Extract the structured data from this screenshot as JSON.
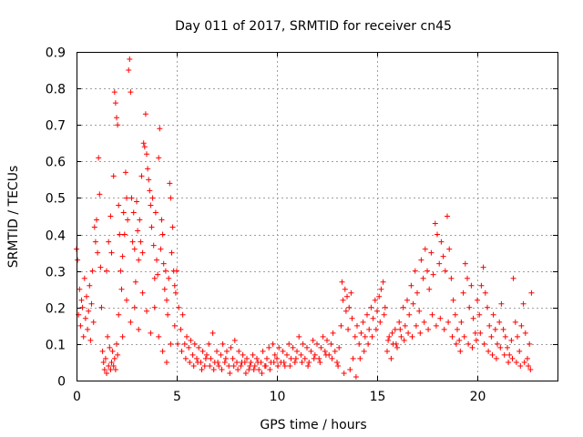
{
  "chart_data": {
    "type": "scatter",
    "title": "Day 011 of 2017, SRMTID for receiver cn45",
    "xlabel": "GPS time / hours",
    "ylabel": "SRMTID / TECUs",
    "xlim": [
      0,
      24
    ],
    "ylim": [
      0,
      0.9
    ],
    "grid": true,
    "marker": "+",
    "series_color": "#ff0000",
    "x_ticks": [
      {
        "value": 0,
        "label": "0"
      },
      {
        "value": 5,
        "label": "5"
      },
      {
        "value": 10,
        "label": "10"
      },
      {
        "value": 15,
        "label": "15"
      },
      {
        "value": 20,
        "label": "20"
      }
    ],
    "y_ticks": [
      {
        "value": 0,
        "label": "0"
      },
      {
        "value": 0.1,
        "label": "0.1"
      },
      {
        "value": 0.2,
        "label": "0.2"
      },
      {
        "value": 0.3,
        "label": "0.3"
      },
      {
        "value": 0.4,
        "label": "0.4"
      },
      {
        "value": 0.5,
        "label": "0.5"
      },
      {
        "value": 0.6,
        "label": "0.6"
      },
      {
        "value": 0.7,
        "label": "0.7"
      },
      {
        "value": 0.8,
        "label": "0.8"
      },
      {
        "value": 0.9,
        "label": "0.9"
      }
    ],
    "points": [
      [
        0.0,
        0.36
      ],
      [
        0.05,
        0.33
      ],
      [
        0.1,
        0.18
      ],
      [
        0.15,
        0.25
      ],
      [
        0.2,
        0.15
      ],
      [
        0.25,
        0.22
      ],
      [
        0.3,
        0.2
      ],
      [
        0.35,
        0.12
      ],
      [
        0.4,
        0.28
      ],
      [
        0.45,
        0.17
      ],
      [
        0.5,
        0.23
      ],
      [
        0.55,
        0.14
      ],
      [
        0.6,
        0.19
      ],
      [
        0.65,
        0.26
      ],
      [
        0.7,
        0.11
      ],
      [
        0.75,
        0.21
      ],
      [
        0.8,
        0.3
      ],
      [
        0.85,
        0.16
      ],
      [
        0.9,
        0.42
      ],
      [
        0.95,
        0.38
      ],
      [
        1.0,
        0.44
      ],
      [
        1.05,
        0.35
      ],
      [
        1.1,
        0.61
      ],
      [
        1.15,
        0.51
      ],
      [
        1.2,
        0.31
      ],
      [
        1.25,
        0.2
      ],
      [
        1.3,
        0.08
      ],
      [
        1.35,
        0.05
      ],
      [
        1.4,
        0.03
      ],
      [
        1.45,
        0.06
      ],
      [
        1.5,
        0.02
      ],
      [
        1.55,
        0.12
      ],
      [
        1.6,
        0.04
      ],
      [
        1.65,
        0.09
      ],
      [
        1.7,
        0.03
      ],
      [
        1.75,
        0.05
      ],
      [
        1.8,
        0.08
      ],
      [
        1.85,
        0.04
      ],
      [
        1.9,
        0.06
      ],
      [
        1.95,
        0.03
      ],
      [
        2.0,
        0.1
      ],
      [
        2.05,
        0.07
      ],
      [
        1.5,
        0.3
      ],
      [
        1.6,
        0.38
      ],
      [
        1.7,
        0.45
      ],
      [
        1.75,
        0.35
      ],
      [
        1.85,
        0.56
      ],
      [
        1.9,
        0.79
      ],
      [
        1.95,
        0.76
      ],
      [
        2.0,
        0.72
      ],
      [
        2.05,
        0.7
      ],
      [
        2.1,
        0.48
      ],
      [
        2.15,
        0.4
      ],
      [
        2.2,
        0.3
      ],
      [
        2.25,
        0.25
      ],
      [
        2.3,
        0.34
      ],
      [
        2.35,
        0.46
      ],
      [
        2.4,
        0.4
      ],
      [
        2.45,
        0.57
      ],
      [
        2.5,
        0.5
      ],
      [
        2.55,
        0.44
      ],
      [
        2.6,
        0.85
      ],
      [
        2.65,
        0.88
      ],
      [
        2.7,
        0.79
      ],
      [
        2.75,
        0.5
      ],
      [
        2.8,
        0.38
      ],
      [
        2.85,
        0.46
      ],
      [
        2.9,
        0.36
      ],
      [
        2.95,
        0.27
      ],
      [
        3.0,
        0.49
      ],
      [
        3.05,
        0.41
      ],
      [
        3.1,
        0.33
      ],
      [
        3.15,
        0.44
      ],
      [
        3.2,
        0.38
      ],
      [
        3.25,
        0.56
      ],
      [
        3.3,
        0.35
      ],
      [
        3.35,
        0.65
      ],
      [
        3.4,
        0.64
      ],
      [
        3.45,
        0.73
      ],
      [
        3.5,
        0.62
      ],
      [
        3.55,
        0.58
      ],
      [
        3.6,
        0.55
      ],
      [
        3.65,
        0.52
      ],
      [
        3.7,
        0.48
      ],
      [
        3.75,
        0.42
      ],
      [
        3.8,
        0.5
      ],
      [
        3.85,
        0.37
      ],
      [
        3.9,
        0.28
      ],
      [
        3.95,
        0.46
      ],
      [
        4.0,
        0.33
      ],
      [
        4.05,
        0.29
      ],
      [
        4.1,
        0.61
      ],
      [
        4.15,
        0.69
      ],
      [
        4.2,
        0.36
      ],
      [
        4.25,
        0.44
      ],
      [
        4.3,
        0.4
      ],
      [
        4.35,
        0.32
      ],
      [
        4.4,
        0.25
      ],
      [
        4.45,
        0.3
      ],
      [
        4.5,
        0.22
      ],
      [
        4.55,
        0.18
      ],
      [
        4.6,
        0.28
      ],
      [
        4.65,
        0.54
      ],
      [
        4.7,
        0.5
      ],
      [
        4.75,
        0.35
      ],
      [
        4.8,
        0.42
      ],
      [
        4.85,
        0.3
      ],
      [
        4.9,
        0.26
      ],
      [
        4.95,
        0.24
      ],
      [
        2.1,
        0.18
      ],
      [
        2.3,
        0.12
      ],
      [
        2.5,
        0.22
      ],
      [
        2.7,
        0.16
      ],
      [
        2.9,
        0.2
      ],
      [
        3.1,
        0.14
      ],
      [
        3.3,
        0.24
      ],
      [
        3.5,
        0.19
      ],
      [
        3.7,
        0.13
      ],
      [
        3.9,
        0.2
      ],
      [
        4.1,
        0.12
      ],
      [
        4.3,
        0.08
      ],
      [
        4.5,
        0.05
      ],
      [
        4.7,
        0.1
      ],
      [
        4.9,
        0.15
      ],
      [
        5.0,
        0.3
      ],
      [
        5.1,
        0.2
      ],
      [
        5.2,
        0.14
      ],
      [
        5.3,
        0.18
      ],
      [
        5.4,
        0.1
      ],
      [
        5.5,
        0.12
      ],
      [
        5.6,
        0.09
      ],
      [
        5.7,
        0.11
      ],
      [
        5.8,
        0.07
      ],
      [
        5.9,
        0.1
      ],
      [
        6.0,
        0.06
      ],
      [
        6.1,
        0.09
      ],
      [
        6.2,
        0.05
      ],
      [
        6.3,
        0.08
      ],
      [
        6.4,
        0.04
      ],
      [
        6.5,
        0.07
      ],
      [
        6.6,
        0.1
      ],
      [
        6.7,
        0.06
      ],
      [
        6.8,
        0.13
      ],
      [
        6.9,
        0.05
      ],
      [
        7.0,
        0.08
      ],
      [
        7.1,
        0.04
      ],
      [
        7.2,
        0.07
      ],
      [
        7.3,
        0.1
      ],
      [
        7.4,
        0.05
      ],
      [
        7.5,
        0.08
      ],
      [
        7.6,
        0.04
      ],
      [
        7.7,
        0.09
      ],
      [
        7.8,
        0.06
      ],
      [
        7.9,
        0.11
      ],
      [
        8.0,
        0.05
      ],
      [
        8.1,
        0.08
      ],
      [
        8.2,
        0.04
      ],
      [
        8.3,
        0.07
      ],
      [
        8.4,
        0.05
      ],
      [
        8.5,
        0.06
      ],
      [
        8.6,
        0.03
      ],
      [
        8.7,
        0.05
      ],
      [
        8.8,
        0.07
      ],
      [
        8.9,
        0.04
      ],
      [
        9.0,
        0.06
      ],
      [
        9.1,
        0.03
      ],
      [
        9.2,
        0.05
      ],
      [
        9.3,
        0.08
      ],
      [
        9.4,
        0.04
      ],
      [
        9.5,
        0.06
      ],
      [
        9.6,
        0.09
      ],
      [
        9.7,
        0.05
      ],
      [
        9.8,
        0.1
      ],
      [
        9.9,
        0.07
      ],
      [
        5.05,
        0.1
      ],
      [
        5.25,
        0.08
      ],
      [
        5.45,
        0.06
      ],
      [
        5.65,
        0.05
      ],
      [
        5.85,
        0.04
      ],
      [
        6.05,
        0.05
      ],
      [
        6.25,
        0.03
      ],
      [
        6.45,
        0.06
      ],
      [
        6.65,
        0.04
      ],
      [
        6.85,
        0.03
      ],
      [
        7.05,
        0.05
      ],
      [
        7.25,
        0.03
      ],
      [
        7.45,
        0.06
      ],
      [
        7.65,
        0.02
      ],
      [
        7.85,
        0.04
      ],
      [
        8.05,
        0.03
      ],
      [
        8.25,
        0.05
      ],
      [
        8.45,
        0.02
      ],
      [
        8.65,
        0.04
      ],
      [
        8.85,
        0.03
      ],
      [
        9.05,
        0.05
      ],
      [
        9.25,
        0.02
      ],
      [
        9.45,
        0.04
      ],
      [
        9.65,
        0.03
      ],
      [
        9.85,
        0.05
      ],
      [
        10.0,
        0.06
      ],
      [
        10.1,
        0.09
      ],
      [
        10.2,
        0.05
      ],
      [
        10.3,
        0.08
      ],
      [
        10.4,
        0.04
      ],
      [
        10.5,
        0.07
      ],
      [
        10.6,
        0.1
      ],
      [
        10.7,
        0.06
      ],
      [
        10.8,
        0.09
      ],
      [
        10.9,
        0.05
      ],
      [
        11.0,
        0.08
      ],
      [
        11.1,
        0.12
      ],
      [
        11.2,
        0.07
      ],
      [
        11.3,
        0.1
      ],
      [
        11.4,
        0.06
      ],
      [
        11.5,
        0.09
      ],
      [
        11.6,
        0.05
      ],
      [
        11.7,
        0.08
      ],
      [
        11.8,
        0.11
      ],
      [
        11.9,
        0.07
      ],
      [
        12.0,
        0.1
      ],
      [
        12.1,
        0.06
      ],
      [
        12.2,
        0.09
      ],
      [
        12.3,
        0.12
      ],
      [
        12.4,
        0.08
      ],
      [
        12.5,
        0.11
      ],
      [
        12.6,
        0.07
      ],
      [
        12.7,
        0.1
      ],
      [
        12.8,
        0.13
      ],
      [
        12.9,
        0.08
      ],
      [
        13.0,
        0.05
      ],
      [
        13.1,
        0.09
      ],
      [
        13.2,
        0.15
      ],
      [
        13.3,
        0.22
      ],
      [
        13.4,
        0.25
      ],
      [
        13.5,
        0.23
      ],
      [
        13.6,
        0.2
      ],
      [
        13.7,
        0.24
      ],
      [
        13.8,
        0.06
      ],
      [
        13.9,
        0.12
      ],
      [
        14.0,
        0.15
      ],
      [
        10.05,
        0.04
      ],
      [
        10.35,
        0.05
      ],
      [
        10.65,
        0.04
      ],
      [
        10.95,
        0.06
      ],
      [
        11.25,
        0.05
      ],
      [
        11.55,
        0.04
      ],
      [
        11.85,
        0.06
      ],
      [
        12.15,
        0.05
      ],
      [
        12.45,
        0.07
      ],
      [
        12.75,
        0.06
      ],
      [
        13.05,
        0.04
      ],
      [
        13.35,
        0.02
      ],
      [
        13.65,
        0.03
      ],
      [
        13.95,
        0.01
      ],
      [
        13.25,
        0.27
      ],
      [
        13.45,
        0.19
      ],
      [
        13.55,
        0.14
      ],
      [
        13.75,
        0.17
      ],
      [
        14.1,
        0.1
      ],
      [
        14.2,
        0.13
      ],
      [
        14.3,
        0.16
      ],
      [
        14.4,
        0.12
      ],
      [
        14.5,
        0.18
      ],
      [
        14.6,
        0.14
      ],
      [
        14.7,
        0.2
      ],
      [
        14.8,
        0.17
      ],
      [
        14.9,
        0.22
      ],
      [
        15.0,
        0.19
      ],
      [
        15.1,
        0.23
      ],
      [
        15.2,
        0.25
      ],
      [
        15.3,
        0.27
      ],
      [
        15.4,
        0.2
      ],
      [
        14.15,
        0.06
      ],
      [
        14.35,
        0.08
      ],
      [
        14.55,
        0.1
      ],
      [
        14.75,
        0.12
      ],
      [
        14.95,
        0.14
      ],
      [
        15.15,
        0.16
      ],
      [
        15.35,
        0.18
      ],
      [
        15.5,
        0.08
      ],
      [
        15.6,
        0.12
      ],
      [
        15.7,
        0.06
      ],
      [
        15.8,
        0.1
      ],
      [
        15.9,
        0.14
      ],
      [
        16.0,
        0.09
      ],
      [
        16.1,
        0.16
      ],
      [
        16.2,
        0.12
      ],
      [
        16.3,
        0.2
      ],
      [
        16.4,
        0.15
      ],
      [
        16.5,
        0.22
      ],
      [
        16.6,
        0.18
      ],
      [
        16.7,
        0.26
      ],
      [
        16.8,
        0.21
      ],
      [
        16.9,
        0.3
      ],
      [
        17.0,
        0.24
      ],
      [
        17.1,
        0.19
      ],
      [
        17.2,
        0.33
      ],
      [
        17.3,
        0.28
      ],
      [
        17.4,
        0.36
      ],
      [
        17.5,
        0.3
      ],
      [
        17.6,
        0.25
      ],
      [
        17.7,
        0.35
      ],
      [
        17.8,
        0.29
      ],
      [
        17.9,
        0.43
      ],
      [
        18.0,
        0.4
      ],
      [
        18.1,
        0.32
      ],
      [
        18.2,
        0.38
      ],
      [
        18.3,
        0.34
      ],
      [
        18.4,
        0.3
      ],
      [
        18.5,
        0.45
      ],
      [
        18.6,
        0.36
      ],
      [
        18.7,
        0.28
      ],
      [
        18.8,
        0.22
      ],
      [
        18.9,
        0.18
      ],
      [
        19.0,
        0.14
      ],
      [
        19.1,
        0.11
      ],
      [
        19.2,
        0.16
      ],
      [
        19.3,
        0.24
      ],
      [
        19.4,
        0.32
      ],
      [
        19.5,
        0.28
      ],
      [
        19.6,
        0.2
      ],
      [
        19.7,
        0.26
      ],
      [
        19.8,
        0.17
      ],
      [
        19.9,
        0.13
      ],
      [
        20.0,
        0.22
      ],
      [
        20.1,
        0.18
      ],
      [
        20.2,
        0.26
      ],
      [
        20.3,
        0.31
      ],
      [
        20.4,
        0.24
      ],
      [
        20.5,
        0.2
      ],
      [
        20.6,
        0.15
      ],
      [
        20.7,
        0.12
      ],
      [
        20.8,
        0.18
      ],
      [
        20.9,
        0.14
      ],
      [
        21.0,
        0.1
      ],
      [
        21.1,
        0.16
      ],
      [
        21.2,
        0.21
      ],
      [
        21.3,
        0.14
      ],
      [
        21.4,
        0.12
      ],
      [
        21.5,
        0.09
      ],
      [
        21.6,
        0.07
      ],
      [
        21.7,
        0.11
      ],
      [
        21.8,
        0.28
      ],
      [
        21.9,
        0.16
      ],
      [
        22.0,
        0.12
      ],
      [
        22.1,
        0.08
      ],
      [
        22.2,
        0.15
      ],
      [
        22.3,
        0.21
      ],
      [
        22.4,
        0.13
      ],
      [
        22.5,
        0.06
      ],
      [
        22.6,
        0.1
      ],
      [
        22.7,
        0.24
      ],
      [
        15.55,
        0.11
      ],
      [
        15.75,
        0.13
      ],
      [
        15.95,
        0.1
      ],
      [
        16.15,
        0.14
      ],
      [
        16.35,
        0.11
      ],
      [
        16.55,
        0.13
      ],
      [
        16.75,
        0.12
      ],
      [
        16.95,
        0.15
      ],
      [
        17.15,
        0.13
      ],
      [
        17.35,
        0.16
      ],
      [
        17.55,
        0.14
      ],
      [
        17.75,
        0.18
      ],
      [
        17.95,
        0.15
      ],
      [
        18.15,
        0.17
      ],
      [
        18.35,
        0.14
      ],
      [
        18.55,
        0.16
      ],
      [
        18.75,
        0.12
      ],
      [
        18.95,
        0.1
      ],
      [
        19.15,
        0.08
      ],
      [
        19.35,
        0.12
      ],
      [
        19.55,
        0.1
      ],
      [
        19.75,
        0.09
      ],
      [
        19.95,
        0.11
      ],
      [
        20.15,
        0.13
      ],
      [
        20.35,
        0.1
      ],
      [
        20.55,
        0.08
      ],
      [
        20.75,
        0.07
      ],
      [
        20.95,
        0.06
      ],
      [
        21.15,
        0.09
      ],
      [
        21.35,
        0.07
      ],
      [
        21.55,
        0.05
      ],
      [
        21.75,
        0.06
      ],
      [
        21.95,
        0.05
      ],
      [
        22.15,
        0.04
      ],
      [
        22.35,
        0.05
      ],
      [
        22.55,
        0.04
      ],
      [
        22.65,
        0.03
      ]
    ]
  }
}
